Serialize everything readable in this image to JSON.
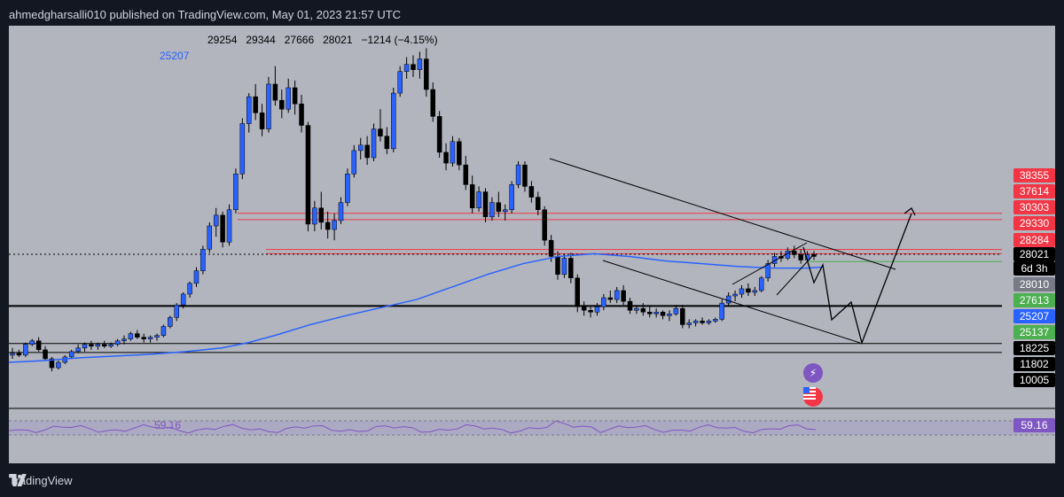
{
  "header": {
    "published_line": "ahmedgharsalli010 published on TradingView.com, May 01, 2023 21:57 UTC"
  },
  "ohlc": {
    "open": "29254",
    "high": "29344",
    "low": "27666",
    "close": "28021",
    "change": "−1214 (−4.15%)"
  },
  "ma": {
    "value": "25207",
    "color": "#2962ff"
  },
  "rsi": {
    "value": "59.16",
    "color": "#7e57c2"
  },
  "price_scale": [
    {
      "label": "38355",
      "bg": "#f23645"
    },
    {
      "label": "37614",
      "bg": "#f23645"
    },
    {
      "label": "30303",
      "bg": "#f23645"
    },
    {
      "label": "29330",
      "bg": "#f23645"
    },
    {
      "label": "28284",
      "bg": "#f23645"
    },
    {
      "label": "28021",
      "bg": "#000000"
    },
    {
      "label": "6d 3h",
      "bg": "#000000"
    },
    {
      "label": "28010",
      "bg": "#787b86"
    },
    {
      "label": "27613",
      "bg": "#4caf50"
    },
    {
      "label": "25207",
      "bg": "#2962ff"
    },
    {
      "label": "25137",
      "bg": "#4caf50"
    },
    {
      "label": "18225",
      "bg": "#000000"
    },
    {
      "label": "11802",
      "bg": "#000000"
    },
    {
      "label": "10005",
      "bg": "#000000"
    }
  ],
  "rsi_tag": {
    "label": "59.16",
    "bg": "#7e57c2"
  },
  "icons": {
    "flash": "flash-icon",
    "flag": "us-flag-icon",
    "logo": "tradingview-logo-icon"
  },
  "footer": {
    "brand": "TradingView"
  },
  "colors": {
    "background": "#131722",
    "chart_bg": "#b2b5be",
    "bull": "#2962ff",
    "bear": "#000000"
  },
  "chart_data": {
    "type": "candlestick",
    "candles": [
      [
        22400,
        22800,
        22200,
        22500
      ],
      [
        22500,
        22700,
        22300,
        22400
      ],
      [
        22400,
        23100,
        22300,
        23000
      ],
      [
        23000,
        23300,
        22900,
        23200
      ],
      [
        23200,
        23400,
        22600,
        22700
      ],
      [
        22700,
        22900,
        22100,
        22200
      ],
      [
        22200,
        22300,
        21500,
        21700
      ],
      [
        21700,
        22100,
        21600,
        22000
      ],
      [
        22000,
        22400,
        21900,
        22300
      ],
      [
        22300,
        22700,
        22200,
        22600
      ],
      [
        22600,
        23000,
        22500,
        22800
      ],
      [
        22800,
        23100,
        22600,
        23000
      ],
      [
        23000,
        23200,
        22700,
        22900
      ],
      [
        22900,
        23100,
        22700,
        23000
      ],
      [
        23000,
        23200,
        22800,
        22900
      ],
      [
        22900,
        23100,
        22800,
        23000
      ],
      [
        23000,
        23300,
        22900,
        23200
      ],
      [
        23200,
        23500,
        23000,
        23300
      ],
      [
        23300,
        23700,
        23200,
        23600
      ],
      [
        23600,
        23800,
        23300,
        23400
      ],
      [
        23400,
        23600,
        23100,
        23300
      ],
      [
        23300,
        23500,
        23100,
        23400
      ],
      [
        23400,
        23600,
        23200,
        23500
      ],
      [
        23500,
        24100,
        23400,
        24000
      ],
      [
        24000,
        24600,
        23900,
        24500
      ],
      [
        24500,
        25300,
        24300,
        25200
      ],
      [
        25200,
        25900,
        25000,
        25800
      ],
      [
        25800,
        26500,
        25600,
        26400
      ],
      [
        26400,
        27300,
        26200,
        27100
      ],
      [
        27100,
        28500,
        26900,
        28300
      ],
      [
        28300,
        29800,
        28100,
        29600
      ],
      [
        29600,
        30600,
        29000,
        30200
      ],
      [
        30200,
        30400,
        28400,
        28700
      ],
      [
        28700,
        30800,
        28500,
        30500
      ],
      [
        30500,
        32800,
        30300,
        32500
      ],
      [
        32500,
        35600,
        32200,
        35300
      ],
      [
        35300,
        37000,
        34800,
        36800
      ],
      [
        36800,
        37500,
        35500,
        35900
      ],
      [
        35900,
        36400,
        34600,
        35000
      ],
      [
        35000,
        37900,
        34800,
        37500
      ],
      [
        37500,
        38500,
        36300,
        36600
      ],
      [
        36600,
        37200,
        35600,
        36100
      ],
      [
        36100,
        37800,
        35900,
        37300
      ],
      [
        37300,
        37700,
        35800,
        36400
      ],
      [
        36400,
        36900,
        34800,
        35200
      ],
      [
        35200,
        35400,
        29300,
        29700
      ],
      [
        29700,
        31000,
        29300,
        30600
      ],
      [
        30600,
        31500,
        29400,
        29800
      ],
      [
        29800,
        30400,
        28900,
        29400
      ],
      [
        29400,
        30300,
        28800,
        29900
      ],
      [
        29900,
        31200,
        29700,
        30900
      ],
      [
        30900,
        32800,
        30700,
        32500
      ],
      [
        32500,
        34100,
        32300,
        33800
      ],
      [
        33800,
        34500,
        33300,
        34100
      ],
      [
        34100,
        34600,
        33000,
        33400
      ],
      [
        33400,
        35300,
        33200,
        35000
      ],
      [
        35000,
        36100,
        34300,
        34600
      ],
      [
        34600,
        35100,
        33600,
        33900
      ],
      [
        33900,
        37300,
        33700,
        37000
      ],
      [
        37000,
        38500,
        36800,
        38200
      ],
      [
        38200,
        39000,
        37800,
        38600
      ],
      [
        38600,
        39100,
        37900,
        38300
      ],
      [
        38300,
        39300,
        37800,
        38900
      ],
      [
        38900,
        39500,
        36800,
        37200
      ],
      [
        37200,
        37600,
        35400,
        35700
      ],
      [
        35700,
        36000,
        33400,
        33700
      ],
      [
        33700,
        34200,
        32700,
        33100
      ],
      [
        33100,
        34600,
        32900,
        34300
      ],
      [
        34300,
        34500,
        32700,
        33000
      ],
      [
        33000,
        33500,
        31600,
        31900
      ],
      [
        31900,
        32400,
        30300,
        30600
      ],
      [
        30600,
        31800,
        30400,
        31500
      ],
      [
        31500,
        31700,
        29800,
        30100
      ],
      [
        30100,
        31200,
        29900,
        30900
      ],
      [
        30900,
        31500,
        30100,
        30400
      ],
      [
        30400,
        30800,
        29900,
        30500
      ],
      [
        30500,
        32100,
        30300,
        31900
      ],
      [
        31900,
        33200,
        31700,
        33000
      ],
      [
        33000,
        33200,
        31500,
        31800
      ],
      [
        31800,
        32100,
        30900,
        31200
      ],
      [
        31200,
        31500,
        30200,
        30500
      ],
      [
        30500,
        30700,
        28500,
        28800
      ],
      [
        28800,
        29100,
        27600,
        27900
      ],
      [
        27900,
        28200,
        26600,
        26900
      ],
      [
        26900,
        28000,
        26700,
        27800
      ],
      [
        27800,
        28100,
        26400,
        26700
      ],
      [
        26700,
        26900,
        24800,
        25100
      ],
      [
        25100,
        25400,
        24600,
        24900
      ],
      [
        24900,
        25100,
        24500,
        24800
      ],
      [
        24800,
        25300,
        24600,
        25100
      ],
      [
        25100,
        25800,
        24900,
        25600
      ],
      [
        25600,
        26000,
        25300,
        25500
      ],
      [
        25500,
        26200,
        25300,
        26000
      ],
      [
        26000,
        26300,
        25200,
        25400
      ],
      [
        25400,
        25600,
        24700,
        24900
      ],
      [
        24900,
        25200,
        24700,
        25000
      ],
      [
        25000,
        25300,
        24600,
        24800
      ],
      [
        24800,
        25100,
        24500,
        24700
      ],
      [
        24700,
        25000,
        24500,
        24800
      ],
      [
        24800,
        24900,
        24400,
        24600
      ],
      [
        24600,
        24900,
        24300,
        24700
      ],
      [
        24700,
        25200,
        24600,
        25000
      ],
      [
        25000,
        25200,
        23900,
        24100
      ],
      [
        24100,
        24400,
        23900,
        24200
      ],
      [
        24200,
        24400,
        24000,
        24300
      ],
      [
        24300,
        24500,
        24100,
        24200
      ],
      [
        24200,
        24400,
        24100,
        24300
      ],
      [
        24300,
        24500,
        24200,
        24400
      ],
      [
        24400,
        25500,
        24300,
        25300
      ],
      [
        25300,
        25900,
        25100,
        25700
      ],
      [
        25700,
        26000,
        25400,
        25800
      ],
      [
        25800,
        26300,
        25600,
        26100
      ],
      [
        26100,
        26400,
        25700,
        25900
      ],
      [
        25900,
        26200,
        25700,
        26000
      ],
      [
        26000,
        26800,
        25900,
        26700
      ],
      [
        26700,
        27700,
        26500,
        27500
      ],
      [
        27500,
        28100,
        27300,
        27900
      ],
      [
        27900,
        28200,
        27600,
        27800
      ],
      [
        27800,
        28400,
        27700,
        28200
      ],
      [
        28200,
        28500,
        27800,
        28000
      ],
      [
        28000,
        28300,
        27500,
        27700
      ],
      [
        27700,
        28200,
        27600,
        28000
      ],
      [
        28000,
        28200,
        27700,
        27900
      ]
    ],
    "ma_line": [
      [
        0,
        22000
      ],
      [
        40,
        22100
      ],
      [
        80,
        22250
      ],
      [
        120,
        22350
      ],
      [
        160,
        22450
      ],
      [
        200,
        22600
      ],
      [
        240,
        22800
      ],
      [
        270,
        23100
      ],
      [
        300,
        23500
      ],
      [
        340,
        24100
      ],
      [
        380,
        24600
      ],
      [
        420,
        25050
      ],
      [
        460,
        25500
      ],
      [
        500,
        26200
      ],
      [
        540,
        26900
      ],
      [
        580,
        27500
      ],
      [
        620,
        27900
      ],
      [
        660,
        28050
      ],
      [
        700,
        27900
      ],
      [
        740,
        27650
      ],
      [
        780,
        27500
      ],
      [
        820,
        27350
      ],
      [
        860,
        27250
      ],
      [
        900,
        27250
      ],
      [
        916,
        27300
      ]
    ],
    "rsi_line": "59.16",
    "horizontal_levels": [
      30303,
      29330,
      28284,
      28021,
      27613,
      25137,
      24300
    ],
    "ylim": [
      10005,
      38355
    ]
  }
}
